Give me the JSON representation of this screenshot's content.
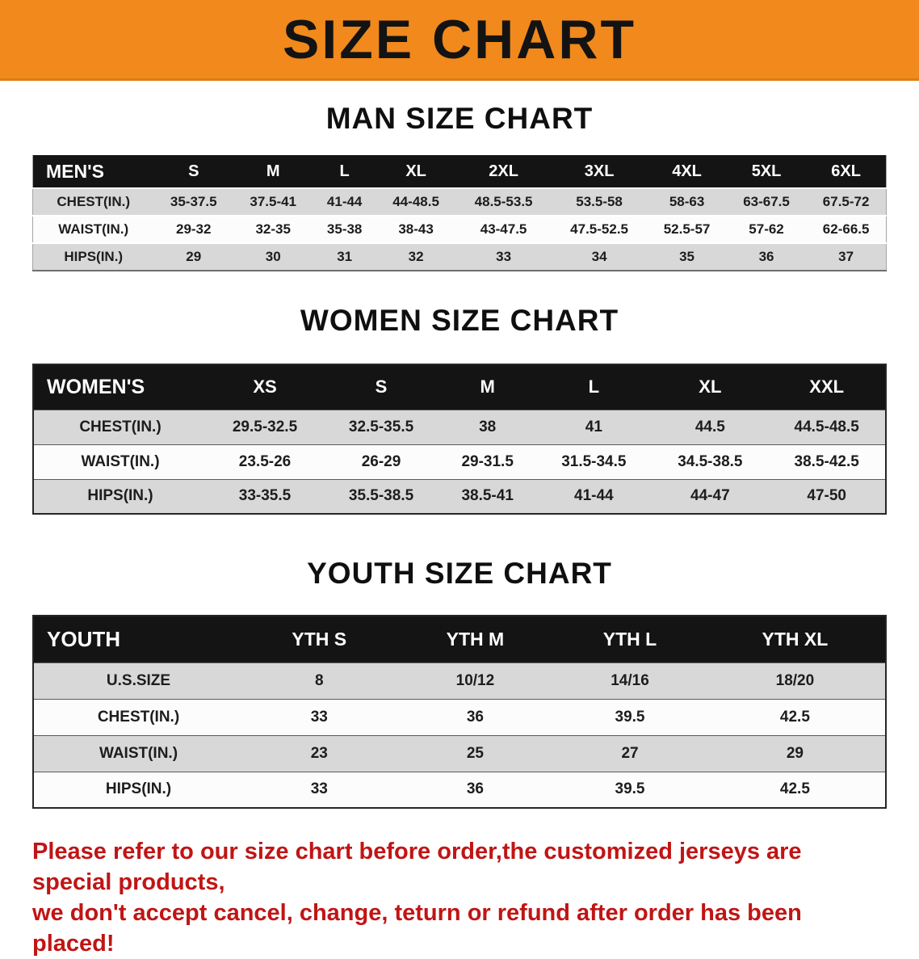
{
  "banner": {
    "title": "SIZE CHART",
    "bg_color": "#f1891c"
  },
  "men": {
    "heading": "MAN SIZE CHART",
    "header": [
      "MEN'S",
      "S",
      "M",
      "L",
      "XL",
      "2XL",
      "3XL",
      "4XL",
      "5XL",
      "6XL"
    ],
    "rows": [
      [
        "CHEST(IN.)",
        "35-37.5",
        "37.5-41",
        "41-44",
        "44-48.5",
        "48.5-53.5",
        "53.5-58",
        "58-63",
        "63-67.5",
        "67.5-72"
      ],
      [
        "WAIST(IN.)",
        "29-32",
        "32-35",
        "35-38",
        "38-43",
        "43-47.5",
        "47.5-52.5",
        "52.5-57",
        "57-62",
        "62-66.5"
      ],
      [
        "HIPS(IN.)",
        "29",
        "30",
        "31",
        "32",
        "33",
        "34",
        "35",
        "36",
        "37"
      ]
    ]
  },
  "women": {
    "heading": "WOMEN SIZE CHART",
    "header": [
      "WOMEN'S",
      "XS",
      "S",
      "M",
      "L",
      "XL",
      "XXL"
    ],
    "rows": [
      [
        "CHEST(IN.)",
        "29.5-32.5",
        "32.5-35.5",
        "38",
        "41",
        "44.5",
        "44.5-48.5"
      ],
      [
        "WAIST(IN.)",
        "23.5-26",
        "26-29",
        "29-31.5",
        "31.5-34.5",
        "34.5-38.5",
        "38.5-42.5"
      ],
      [
        "HIPS(IN.)",
        "33-35.5",
        "35.5-38.5",
        "38.5-41",
        "41-44",
        "44-47",
        "47-50"
      ]
    ]
  },
  "youth": {
    "heading": "YOUTH SIZE CHART",
    "header": [
      "YOUTH",
      "YTH S",
      "YTH M",
      "YTH L",
      "YTH XL"
    ],
    "rows": [
      [
        "U.S.SIZE",
        "8",
        "10/12",
        "14/16",
        "18/20"
      ],
      [
        "CHEST(IN.)",
        "33",
        "36",
        "39.5",
        "42.5"
      ],
      [
        "WAIST(IN.)",
        "23",
        "25",
        "27",
        "29"
      ],
      [
        "HIPS(IN.)",
        "33",
        "36",
        "39.5",
        "42.5"
      ]
    ]
  },
  "note": {
    "line1": "Please refer to our size chart before order,the customized jerseys are special products,",
    "line2": "we don't accept cancel, change, teturn or refund after order has been placed!",
    "color": "#c01515"
  }
}
